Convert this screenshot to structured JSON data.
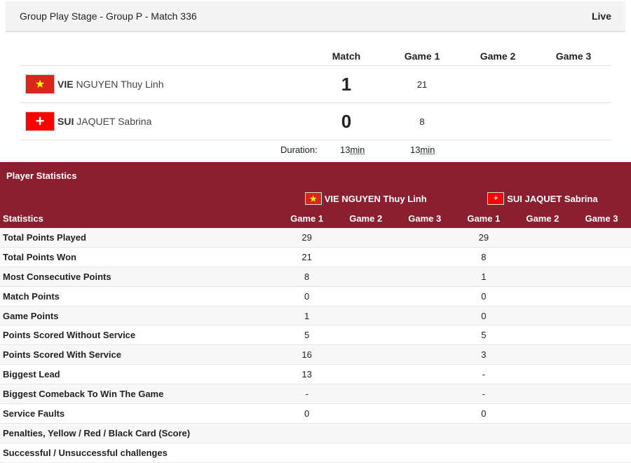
{
  "header": {
    "title": "Group Play Stage - Group P  - Match 336",
    "status": "Live"
  },
  "score": {
    "columns": [
      "Match",
      "Game 1",
      "Game 2",
      "Game 3"
    ],
    "players": [
      {
        "code": "VIE",
        "name": "NGUYEN Thuy Linh",
        "flag": "vietnam-flag-icon",
        "match": "1",
        "games": [
          "21",
          "",
          ""
        ]
      },
      {
        "code": "SUI",
        "name": "JAQUET Sabrina",
        "flag": "switzerland-flag-icon",
        "match": "0",
        "games": [
          "8",
          "",
          ""
        ]
      }
    ],
    "duration_label": "Duration:",
    "match_duration": "13",
    "game1_duration": "13",
    "unit": "min"
  },
  "stats": {
    "title": "Player Statistics",
    "players": [
      "VIE NGUYEN Thuy Linh",
      "SUI JAQUET Sabrina"
    ],
    "label_header": "Statistics",
    "games": [
      "Game 1",
      "Game 2",
      "Game 3"
    ],
    "accent": "#8a1f30",
    "rows": [
      {
        "label": "Total Points Played",
        "p1": "29",
        "p2": "29"
      },
      {
        "label": "Total Points Won",
        "p1": "21",
        "p2": "8"
      },
      {
        "label": "Most Consecutive Points",
        "p1": "8",
        "p2": "1"
      },
      {
        "label": "Match Points",
        "p1": "0",
        "p2": "0"
      },
      {
        "label": "Game Points",
        "p1": "1",
        "p2": "0"
      },
      {
        "label": "Points Scored Without Service",
        "p1": "5",
        "p2": "5"
      },
      {
        "label": "Points Scored With Service",
        "p1": "16",
        "p2": "3"
      },
      {
        "label": "Biggest Lead",
        "p1": "13",
        "p2": "-"
      },
      {
        "label": "Biggest Comeback To Win The Game",
        "p1": "-",
        "p2": "-"
      },
      {
        "label": "Service Faults",
        "p1": "0",
        "p2": "0"
      },
      {
        "label": "Penalties, Yellow / Red / Black Card (Score)",
        "p1": "",
        "p2": ""
      },
      {
        "label": "Successful / Unsuccessful challenges",
        "p1": "",
        "p2": ""
      }
    ]
  }
}
